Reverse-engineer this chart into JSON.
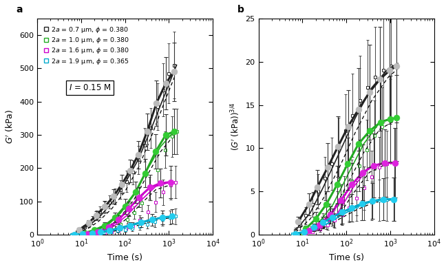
{
  "panel_a": {
    "title": "a",
    "ylim": [
      0,
      650
    ],
    "xlim": [
      1.0,
      10000
    ],
    "yticks": [
      0,
      100,
      200,
      300,
      400,
      500,
      600
    ],
    "annotation": "I = 0.15 M",
    "series": [
      {
        "label": "2$a$ = 0.7 μm, $ϕ$ = 0.380",
        "color": "#222222",
        "circle_color": "#bbbbbb",
        "sq_edge": "#222222",
        "open_times": [
          8,
          10,
          12,
          15,
          18,
          22,
          27,
          35,
          45,
          60,
          80,
          110,
          150,
          200,
          280,
          380,
          550,
          750,
          1000,
          1300
        ],
        "open_values": [
          8,
          14,
          22,
          32,
          44,
          58,
          68,
          82,
          98,
          115,
          135,
          160,
          188,
          225,
          270,
          320,
          385,
          435,
          485,
          510
        ],
        "open_yerr": [
          4,
          6,
          8,
          10,
          12,
          15,
          16,
          18,
          20,
          24,
          28,
          32,
          36,
          42,
          50,
          60,
          70,
          80,
          90,
          100
        ],
        "filled_times": [
          9,
          15,
          22,
          35,
          55,
          85,
          130,
          200,
          320,
          520,
          850,
          1300
        ],
        "filled_values": [
          15,
          35,
          58,
          85,
          115,
          152,
          192,
          240,
          310,
          395,
          455,
          490
        ],
        "filled_yerr": [
          5,
          8,
          12,
          16,
          22,
          28,
          34,
          42,
          55,
          68,
          78,
          88
        ],
        "fit_times": [
          8,
          15,
          25,
          50,
          100,
          200,
          400,
          800,
          1500
        ],
        "fit_values": [
          8,
          28,
          50,
          95,
          155,
          225,
          320,
          420,
          510
        ],
        "fit2_times": [
          8,
          15,
          25,
          50,
          100,
          200,
          400,
          800,
          1500
        ],
        "fit2_values": [
          5,
          20,
          40,
          78,
          130,
          200,
          295,
          400,
          490
        ]
      },
      {
        "label": "2$a$ = 1.0 μm, $ϕ$ = 0.380",
        "color": "#22aa22",
        "circle_color": "#33cc33",
        "sq_edge": "#22aa22",
        "open_times": [
          10,
          14,
          20,
          28,
          40,
          55,
          80,
          115,
          165,
          240,
          360,
          550,
          820,
          1200,
          1500
        ],
        "open_values": [
          2,
          4,
          7,
          11,
          16,
          22,
          32,
          46,
          66,
          95,
          140,
          195,
          255,
          295,
          310
        ],
        "open_yerr": [
          1,
          2,
          3,
          4,
          6,
          8,
          10,
          13,
          18,
          25,
          33,
          45,
          55,
          62,
          68
        ],
        "filled_times": [
          12,
          20,
          35,
          60,
          100,
          175,
          290,
          500,
          850,
          1300
        ],
        "filled_values": [
          5,
          14,
          28,
          52,
          85,
          128,
          185,
          250,
          300,
          310
        ],
        "filled_yerr": [
          2,
          5,
          9,
          15,
          22,
          32,
          42,
          52,
          62,
          68
        ],
        "fit_times": [
          10,
          20,
          40,
          80,
          160,
          320,
          650,
          1300
        ],
        "fit_values": [
          2,
          10,
          28,
          65,
          120,
          195,
          265,
          310
        ],
        "fit2_times": [
          10,
          20,
          40,
          80,
          160,
          320,
          650,
          1300
        ],
        "fit2_values": [
          1,
          7,
          22,
          55,
          105,
          178,
          250,
          298
        ]
      },
      {
        "label": "2$a$ = 1.6 μm, $ϕ$ = 0.380",
        "color": "#cc00cc",
        "circle_color": "#dd22dd",
        "sq_edge": "#cc00cc",
        "open_times": [
          12,
          17,
          25,
          35,
          50,
          72,
          105,
          150,
          220,
          330,
          500,
          750,
          1100,
          1400
        ],
        "open_values": [
          1,
          2,
          4,
          6,
          9,
          13,
          19,
          28,
          44,
          68,
          98,
          128,
          150,
          158
        ],
        "open_yerr": [
          1,
          1,
          2,
          3,
          4,
          5,
          7,
          10,
          15,
          22,
          30,
          38,
          44,
          48
        ],
        "filled_times": [
          14,
          24,
          42,
          72,
          122,
          210,
          370,
          650,
          1100
        ],
        "filled_values": [
          3,
          9,
          22,
          45,
          78,
          112,
          142,
          155,
          158
        ],
        "filled_yerr": [
          1,
          4,
          8,
          14,
          22,
          30,
          38,
          44,
          48
        ],
        "fit_times": [
          12,
          25,
          55,
          115,
          240,
          500,
          1100
        ],
        "fit_values": [
          1,
          8,
          25,
          60,
          105,
          145,
          158
        ],
        "fit2_times": [
          12,
          25,
          55,
          115,
          240,
          500,
          1100
        ],
        "fit2_values": [
          0.5,
          5,
          18,
          50,
          95,
          135,
          150
        ]
      },
      {
        "label": "2$a$ = 1.9 μm, $ϕ$ = 0.365",
        "color": "#00aacc",
        "circle_color": "#22ccee",
        "sq_edge": "#00aacc",
        "open_times": [
          6,
          8,
          11,
          15,
          22,
          32,
          47,
          68,
          100,
          148,
          215,
          320,
          480,
          720,
          1050,
          1400
        ],
        "open_values": [
          0.5,
          1,
          2,
          3,
          5,
          7,
          9,
          12,
          15,
          19,
          24,
          31,
          39,
          46,
          52,
          55
        ],
        "open_yerr": [
          0.3,
          0.5,
          1,
          1.5,
          2,
          3,
          4,
          5,
          6,
          8,
          10,
          13,
          16,
          19,
          21,
          23
        ],
        "filled_times": [
          7,
          11,
          18,
          28,
          45,
          75,
          130,
          230,
          410,
          720,
          1200
        ],
        "filled_values": [
          1,
          2.5,
          5,
          8,
          13,
          20,
          28,
          37,
          45,
          52,
          55
        ],
        "filled_yerr": [
          0.5,
          1,
          2,
          3,
          5,
          7,
          10,
          14,
          17,
          20,
          22
        ],
        "fit_times": [
          6,
          15,
          35,
          80,
          200,
          500,
          1200
        ],
        "fit_values": [
          0.5,
          3,
          8,
          18,
          33,
          47,
          55
        ],
        "fit2_times": [
          6,
          15,
          35,
          80,
          200,
          500,
          1200
        ],
        "fit2_values": [
          0.3,
          2,
          6,
          14,
          28,
          43,
          52
        ]
      }
    ]
  },
  "panel_b": {
    "title": "b",
    "ylim": [
      0,
      25
    ],
    "xlim": [
      1.0,
      10000
    ],
    "yticks": [
      0,
      5,
      10,
      15,
      20,
      25
    ],
    "series": [
      {
        "color": "#222222",
        "circle_color": "#bbbbbb",
        "sq_edge": "#222222",
        "open_times": [
          7,
          9,
          12,
          17,
          23,
          32,
          46,
          67,
          97,
          140,
          205,
          305,
          460,
          700,
          1050,
          1400
        ],
        "open_values": [
          0.5,
          1.2,
          2.2,
          3.5,
          5.0,
          6.5,
          8.2,
          10.0,
          12.0,
          13.8,
          15.5,
          17.0,
          18.2,
          19.0,
          19.5,
          19.5
        ],
        "open_yerr": [
          0.3,
          0.6,
          1.0,
          1.4,
          2.0,
          2.5,
          3.0,
          3.5,
          4.2,
          4.8,
          5.2,
          5.5,
          5.8,
          6.0,
          6.2,
          6.5
        ],
        "filled_times": [
          8,
          14,
          22,
          38,
          65,
          110,
          190,
          340,
          590,
          980,
          1400
        ],
        "filled_values": [
          1.5,
          3.5,
          5.5,
          7.8,
          10.2,
          12.5,
          14.5,
          16.5,
          18.0,
          19.0,
          19.5
        ],
        "filled_yerr": [
          0.6,
          1.3,
          2.0,
          2.8,
          3.5,
          4.2,
          4.8,
          5.5,
          6.0,
          6.2,
          6.5
        ],
        "fit_times": [
          7,
          15,
          30,
          70,
          160,
          380,
          900,
          1500
        ],
        "fit_values": [
          0.5,
          2.5,
          5.5,
          9.5,
          13.5,
          17.0,
          19.2,
          19.8
        ],
        "fit2_times": [
          7,
          15,
          30,
          70,
          160,
          380,
          900,
          1500
        ],
        "fit2_values": [
          0.3,
          1.8,
          4.2,
          7.8,
          11.8,
          15.5,
          18.2,
          19.2
        ]
      },
      {
        "color": "#22aa22",
        "circle_color": "#33cc33",
        "sq_edge": "#22aa22",
        "open_times": [
          10,
          14,
          20,
          29,
          42,
          62,
          90,
          132,
          195,
          290,
          440,
          660,
          1000,
          1400
        ],
        "open_values": [
          0.2,
          0.5,
          1.0,
          1.7,
          2.5,
          3.5,
          4.8,
          6.2,
          8.0,
          9.8,
          11.5,
          12.5,
          13.2,
          13.5
        ],
        "open_yerr": [
          0.15,
          0.3,
          0.5,
          0.8,
          1.1,
          1.5,
          2.0,
          2.5,
          3.0,
          3.5,
          4.0,
          4.5,
          4.8,
          5.0
        ],
        "filled_times": [
          12,
          20,
          35,
          62,
          108,
          190,
          340,
          600,
          1000,
          1400
        ],
        "filled_values": [
          0.7,
          1.8,
          3.5,
          5.8,
          8.2,
          10.5,
          12.0,
          13.0,
          13.4,
          13.5
        ],
        "filled_yerr": [
          0.3,
          0.8,
          1.5,
          2.2,
          3.0,
          3.8,
          4.2,
          4.8,
          5.0,
          5.0
        ],
        "fit_times": [
          10,
          22,
          50,
          110,
          250,
          580,
          1300
        ],
        "fit_values": [
          0.2,
          1.2,
          3.5,
          7.0,
          10.5,
          13.0,
          13.5
        ],
        "fit2_times": [
          10,
          22,
          50,
          110,
          250,
          580,
          1300
        ],
        "fit2_values": [
          0.15,
          0.9,
          2.8,
          6.0,
          9.5,
          12.2,
          13.2
        ]
      },
      {
        "color": "#cc00cc",
        "circle_color": "#dd22dd",
        "sq_edge": "#cc00cc",
        "open_times": [
          12,
          17,
          25,
          37,
          54,
          79,
          116,
          170,
          252,
          375,
          560,
          840,
          1250
        ],
        "open_values": [
          0.15,
          0.35,
          0.65,
          1.1,
          1.65,
          2.3,
          3.1,
          4.2,
          5.4,
          6.7,
          7.8,
          8.2,
          8.3
        ],
        "open_yerr": [
          0.1,
          0.2,
          0.35,
          0.55,
          0.85,
          1.15,
          1.5,
          2.0,
          2.5,
          3.0,
          3.5,
          3.8,
          4.0
        ],
        "filled_times": [
          14,
          24,
          43,
          76,
          134,
          238,
          425,
          760,
          1300
        ],
        "filled_values": [
          0.45,
          1.1,
          2.3,
          4.0,
          5.8,
          7.2,
          8.0,
          8.3,
          8.3
        ],
        "filled_yerr": [
          0.2,
          0.5,
          1.0,
          1.8,
          2.5,
          3.2,
          3.7,
          3.9,
          4.0
        ],
        "fit_times": [
          12,
          28,
          64,
          145,
          335,
          770,
          1300
        ],
        "fit_values": [
          0.15,
          0.8,
          2.5,
          5.5,
          7.8,
          8.3,
          8.3
        ],
        "fit2_times": [
          12,
          28,
          64,
          145,
          335,
          770,
          1300
        ],
        "fit2_values": [
          0.1,
          0.6,
          2.0,
          4.8,
          7.2,
          8.1,
          8.3
        ]
      },
      {
        "color": "#00aacc",
        "circle_color": "#22ccee",
        "sq_edge": "#00aacc",
        "open_times": [
          6,
          8,
          11,
          16,
          24,
          35,
          52,
          77,
          114,
          170,
          254,
          380,
          570,
          850,
          1270
        ],
        "open_values": [
          0.05,
          0.15,
          0.3,
          0.6,
          1.0,
          1.4,
          1.9,
          2.4,
          2.9,
          3.3,
          3.7,
          3.9,
          4.0,
          4.1,
          4.1
        ],
        "open_yerr": [
          0.05,
          0.1,
          0.2,
          0.35,
          0.55,
          0.75,
          1.0,
          1.2,
          1.5,
          1.7,
          2.0,
          2.2,
          2.4,
          2.5,
          2.5
        ],
        "filled_times": [
          7,
          11,
          18,
          29,
          48,
          80,
          135,
          230,
          400,
          700,
          1200
        ],
        "filled_values": [
          0.1,
          0.35,
          0.85,
          1.4,
          2.0,
          2.6,
          3.1,
          3.6,
          3.9,
          4.1,
          4.1
        ],
        "filled_yerr": [
          0.06,
          0.18,
          0.42,
          0.7,
          1.0,
          1.3,
          1.6,
          1.9,
          2.1,
          2.4,
          2.5
        ],
        "fit_times": [
          6,
          14,
          32,
          75,
          175,
          415,
          980,
          1400
        ],
        "fit_values": [
          0.05,
          0.4,
          1.1,
          2.2,
          3.2,
          3.9,
          4.1,
          4.1
        ],
        "fit2_times": [
          6,
          14,
          32,
          75,
          175,
          415,
          980,
          1400
        ],
        "fit2_values": [
          0.03,
          0.3,
          0.9,
          1.9,
          2.9,
          3.7,
          4.0,
          4.1
        ]
      }
    ]
  },
  "legend_labels": [
    "2$\\mathit{a}$ = 0.7 μm, $\\phi$ = 0.380",
    "2$\\mathit{a}$ = 1.0 μm, $\\phi$ = 0.380",
    "2$\\mathit{a}$ = 1.6 μm, $\\phi$ = 0.380",
    "2$\\mathit{a}$ = 1.9 μm, $\\phi$ = 0.365"
  ],
  "legend_colors": [
    "#222222",
    "#22aa22",
    "#cc00cc",
    "#00aacc"
  ],
  "annotation_text": "$I$ = 0.15 M"
}
